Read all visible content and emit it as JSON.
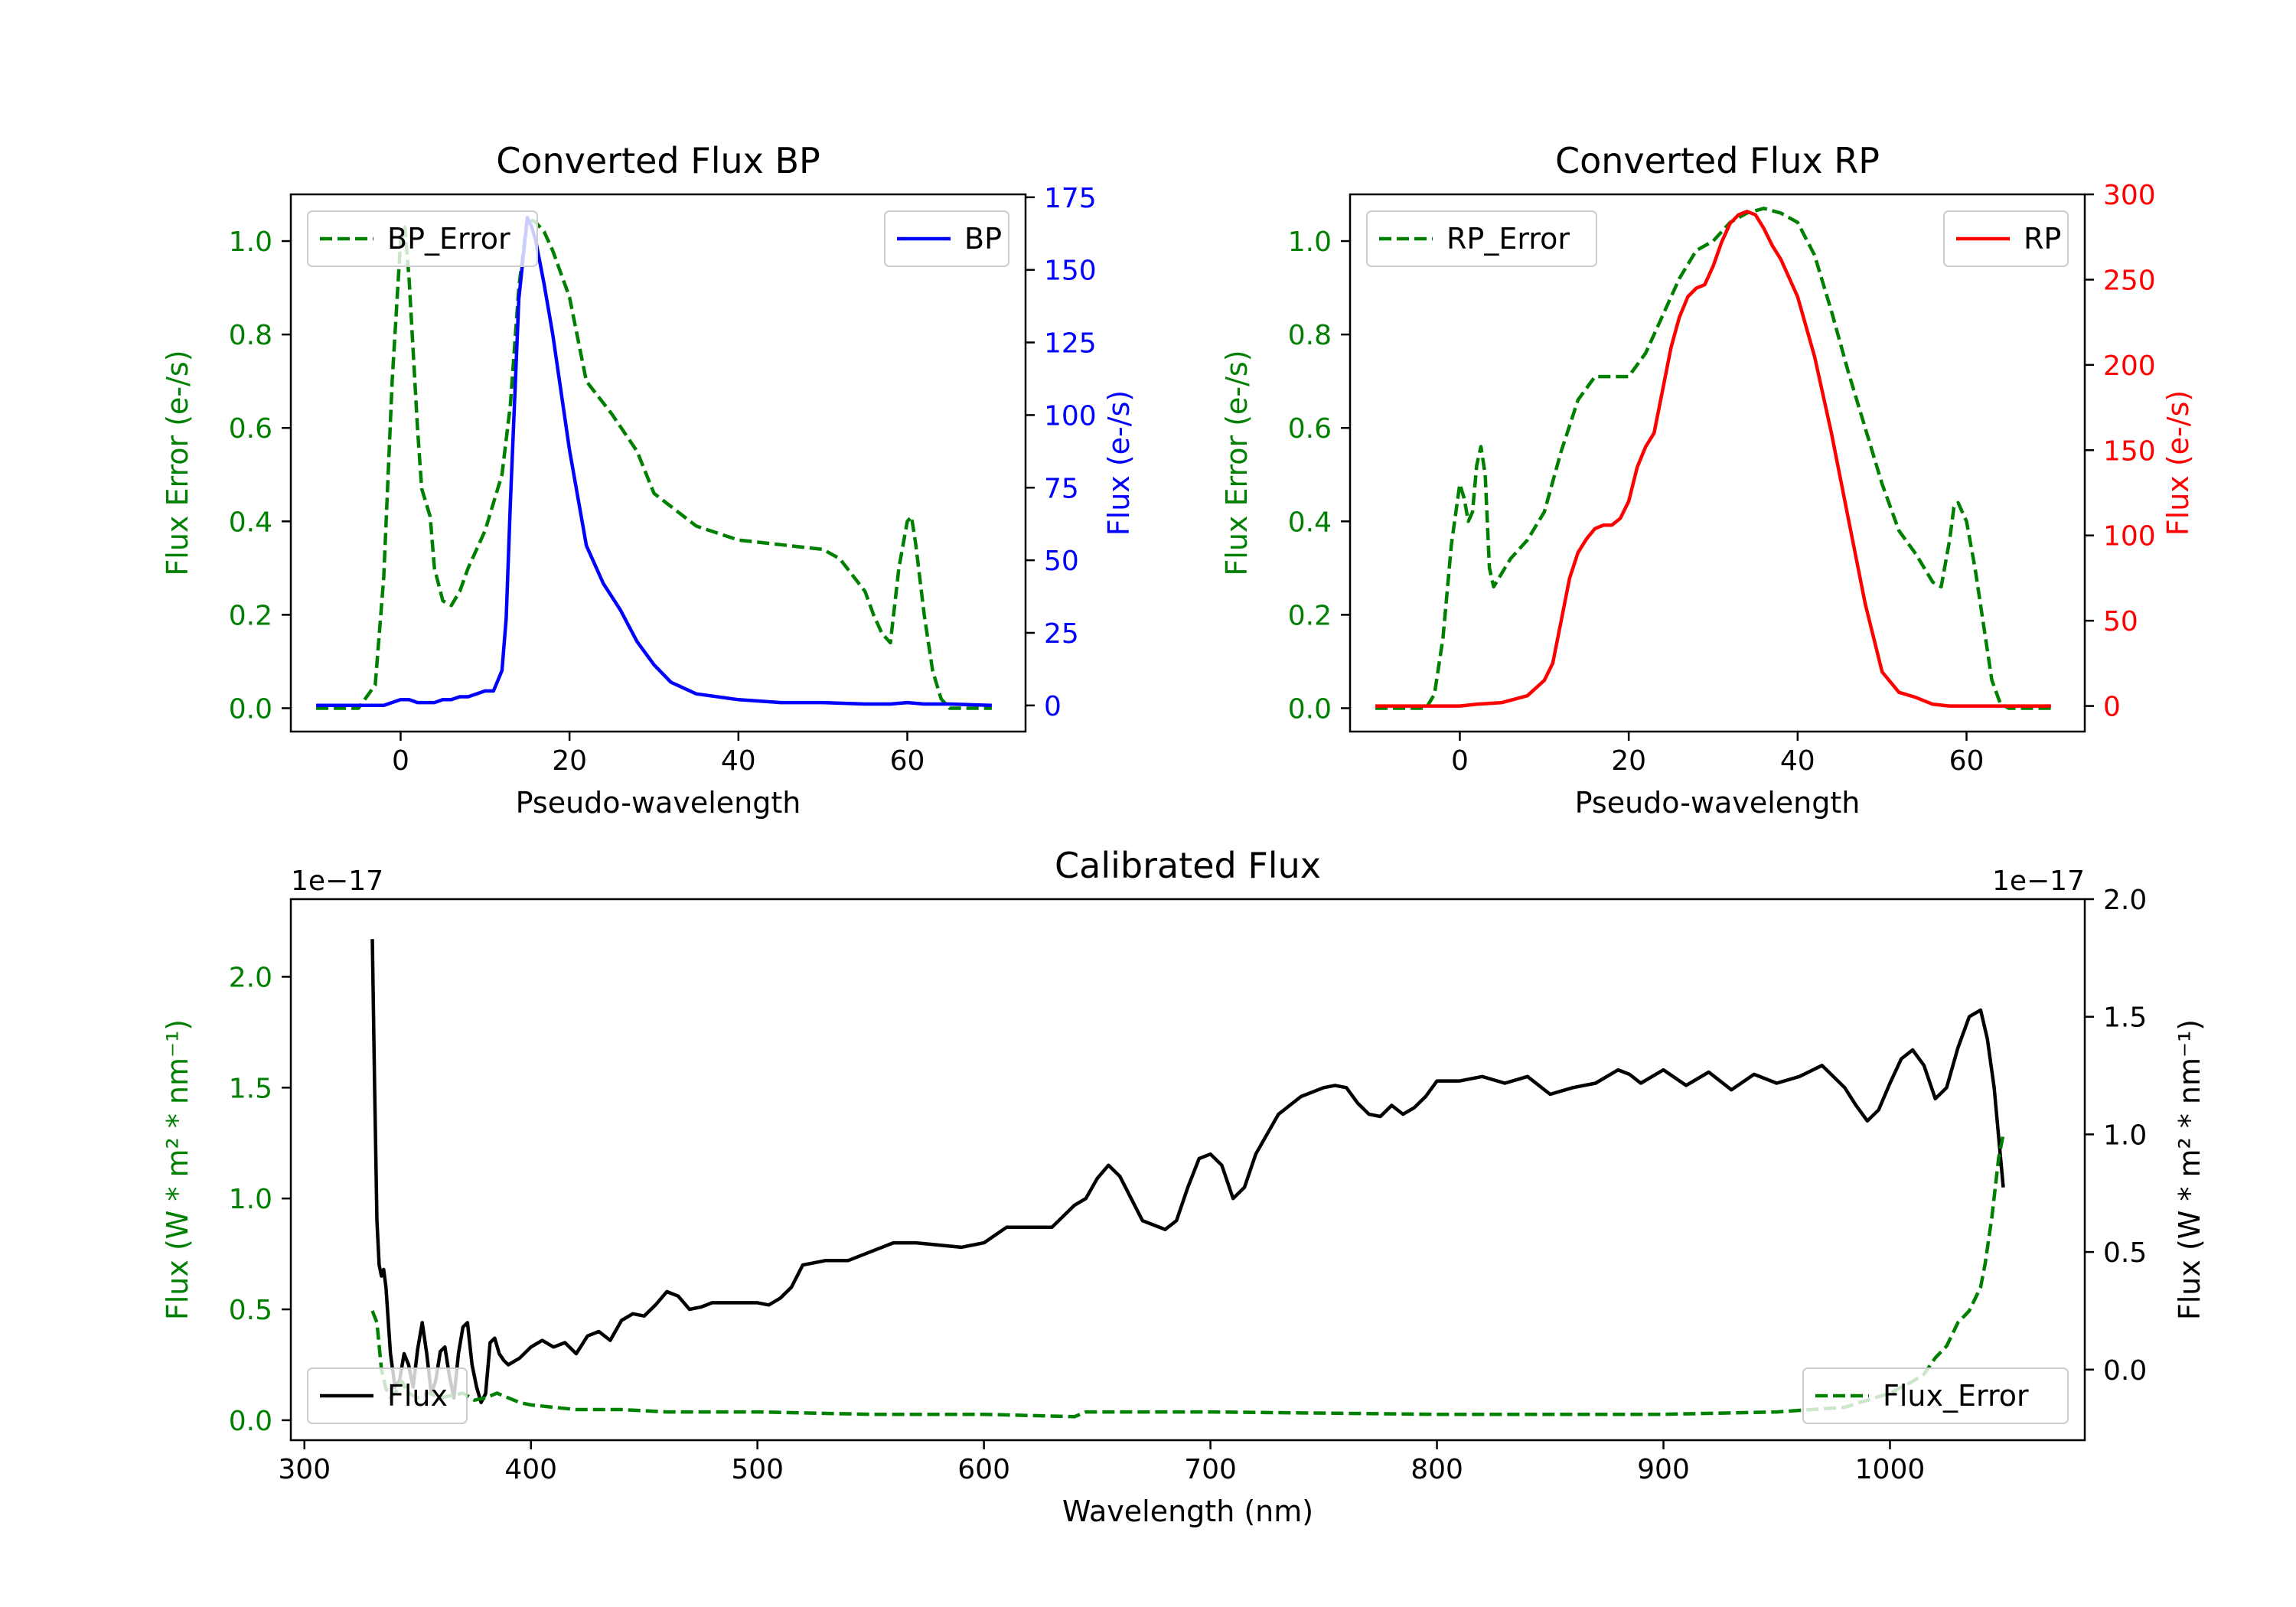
{
  "chart_data": [
    {
      "id": "bp",
      "type": "line",
      "title": "Converted Flux BP",
      "xlabel": "Pseudo-wavelength",
      "ylabel_left": "Flux Error (e-/s)",
      "ylabel_right": "Flux (e-/s)",
      "xlim": [
        -13,
        74
      ],
      "ylim_left": [
        -0.05,
        1.1
      ],
      "ylim_right": [
        -9,
        176
      ],
      "xticks": [
        0,
        20,
        40,
        60
      ],
      "yticks_left": [
        0.0,
        0.2,
        0.4,
        0.6,
        0.8,
        1.0
      ],
      "yticks_right": [
        0,
        25,
        50,
        75,
        100,
        125,
        150,
        175
      ],
      "left_color": "#008000",
      "right_color": "#0000ff",
      "legend_left": "BP_Error",
      "legend_right": "BP",
      "series": [
        {
          "name": "BP_Error",
          "axis": "left",
          "style": "dashed",
          "color": "#008000",
          "x": [
            -10,
            -5,
            -3,
            -2,
            -1,
            0,
            0.5,
            1,
            2,
            2.5,
            3,
            3.5,
            4,
            5,
            6,
            7,
            8,
            10,
            12,
            13,
            14,
            15,
            16,
            17,
            18,
            20,
            22,
            25,
            28,
            30,
            35,
            40,
            45,
            50,
            52,
            55,
            56,
            57,
            58,
            59,
            60,
            60.5,
            61,
            62,
            63,
            64,
            65,
            67,
            70
          ],
          "values": [
            0.0,
            0.0,
            0.05,
            0.28,
            0.7,
            1.0,
            1.03,
            0.92,
            0.6,
            0.47,
            0.44,
            0.41,
            0.3,
            0.23,
            0.22,
            0.25,
            0.3,
            0.38,
            0.5,
            0.65,
            0.9,
            1.05,
            1.04,
            1.02,
            0.98,
            0.88,
            0.7,
            0.63,
            0.55,
            0.46,
            0.39,
            0.36,
            0.35,
            0.34,
            0.32,
            0.25,
            0.2,
            0.16,
            0.14,
            0.3,
            0.4,
            0.41,
            0.35,
            0.2,
            0.08,
            0.02,
            0.0,
            0.0,
            0.0
          ]
        },
        {
          "name": "BP",
          "axis": "right",
          "style": "solid",
          "color": "#0000ff",
          "x": [
            -10,
            -2,
            0,
            1,
            2,
            3,
            4,
            5,
            6,
            7,
            8,
            9,
            10,
            11,
            12,
            12.5,
            13,
            14,
            15,
            15.5,
            16,
            17,
            18,
            20,
            22,
            24,
            26,
            28,
            30,
            32,
            35,
            40,
            45,
            50,
            55,
            58,
            60,
            62,
            65,
            70
          ],
          "values": [
            0,
            0,
            2,
            2,
            1,
            1,
            1,
            2,
            2,
            3,
            3,
            4,
            5,
            5,
            12,
            30,
            70,
            140,
            168,
            165,
            160,
            145,
            128,
            88,
            55,
            42,
            33,
            22,
            14,
            8,
            4,
            2,
            1,
            1,
            0.5,
            0.5,
            1,
            0.5,
            0.5,
            0
          ]
        }
      ]
    },
    {
      "id": "rp",
      "type": "line",
      "title": "Converted Flux RP",
      "xlabel": "Pseudo-wavelength",
      "ylabel_left": "Flux Error (e-/s)",
      "ylabel_right": "Flux (e-/s)",
      "xlim": [
        -13,
        74
      ],
      "ylim_left": [
        -0.05,
        1.1
      ],
      "ylim_right": [
        -15,
        300
      ],
      "xticks": [
        0,
        20,
        40,
        60
      ],
      "yticks_left": [
        0.0,
        0.2,
        0.4,
        0.6,
        0.8,
        1.0
      ],
      "yticks_right": [
        0,
        50,
        100,
        150,
        200,
        250,
        300
      ],
      "left_color": "#008000",
      "right_color": "#ff0000",
      "legend_left": "RP_Error",
      "legend_right": "RP",
      "series": [
        {
          "name": "RP_Error",
          "axis": "left",
          "style": "dashed",
          "color": "#008000",
          "x": [
            -10,
            -4,
            -3,
            -2,
            -1,
            0,
            0.5,
            1,
            1.5,
            2,
            2.5,
            3,
            3.5,
            4,
            5,
            6,
            8,
            10,
            12,
            14,
            16,
            18,
            20,
            22,
            24,
            26,
            28,
            30,
            32,
            34,
            36,
            38,
            40,
            42,
            44,
            46,
            48,
            50,
            52,
            54,
            55,
            56,
            57,
            58,
            58.5,
            59,
            60,
            61,
            62,
            63,
            64,
            65,
            70
          ],
          "values": [
            0.0,
            0.0,
            0.03,
            0.15,
            0.35,
            0.48,
            0.45,
            0.4,
            0.42,
            0.52,
            0.56,
            0.5,
            0.3,
            0.26,
            0.29,
            0.32,
            0.36,
            0.42,
            0.55,
            0.66,
            0.71,
            0.71,
            0.71,
            0.76,
            0.84,
            0.92,
            0.98,
            1.0,
            1.04,
            1.06,
            1.07,
            1.06,
            1.04,
            0.97,
            0.85,
            0.72,
            0.6,
            0.48,
            0.38,
            0.33,
            0.3,
            0.27,
            0.26,
            0.36,
            0.43,
            0.44,
            0.4,
            0.3,
            0.18,
            0.06,
            0.01,
            0.0,
            0.0
          ]
        },
        {
          "name": "RP",
          "axis": "right",
          "style": "solid",
          "color": "#ff0000",
          "x": [
            -10,
            0,
            2,
            5,
            8,
            10,
            11,
            12,
            13,
            14,
            15,
            16,
            17,
            18,
            19,
            20,
            21,
            22,
            23,
            24,
            25,
            26,
            27,
            28,
            29,
            30,
            31,
            32,
            33,
            34,
            35,
            36,
            37,
            38,
            40,
            42,
            44,
            46,
            48,
            50,
            52,
            54,
            56,
            58,
            60,
            62,
            65,
            70
          ],
          "values": [
            0,
            0,
            1,
            2,
            6,
            15,
            25,
            50,
            75,
            90,
            98,
            104,
            106,
            106,
            110,
            120,
            140,
            152,
            160,
            185,
            210,
            228,
            240,
            245,
            247,
            258,
            272,
            283,
            288,
            290,
            288,
            280,
            270,
            262,
            240,
            205,
            160,
            110,
            60,
            20,
            8,
            5,
            1,
            0,
            0,
            0,
            0,
            0
          ]
        }
      ]
    },
    {
      "id": "cal",
      "type": "line",
      "title": "Calibrated Flux",
      "xlabel": "Wavelength (nm)",
      "ylabel_left": "Flux (W * m² * nm⁻¹)",
      "ylabel_right": "Flux (W * m² * nm⁻¹)",
      "offset_left": "1e−17",
      "offset_right": "1e−17",
      "xlim": [
        294,
        1086
      ],
      "ylim_left": [
        -0.09,
        2.35
      ],
      "ylim_right": [
        -0.3,
        2.0
      ],
      "xticks": [
        300,
        400,
        500,
        600,
        700,
        800,
        900,
        1000
      ],
      "yticks_left": [
        0.0,
        0.5,
        1.0,
        1.5,
        2.0
      ],
      "yticks_right": [
        0.0,
        0.5,
        1.0,
        1.5,
        2.0
      ],
      "left_color": "#008000",
      "right_color": "#000000",
      "legend_left": "Flux",
      "legend_right": "Flux_Error",
      "series": [
        {
          "name": "Flux",
          "axis": "left",
          "style": "solid",
          "color": "#000000",
          "x": [
            330,
            331,
            332,
            333,
            334,
            335,
            336,
            338,
            340,
            342,
            344,
            346,
            348,
            350,
            352,
            354,
            356,
            358,
            360,
            362,
            364,
            366,
            368,
            370,
            372,
            374,
            376,
            378,
            380,
            382,
            384,
            386,
            388,
            390,
            395,
            400,
            405,
            410,
            415,
            420,
            425,
            430,
            435,
            440,
            445,
            450,
            455,
            460,
            465,
            470,
            475,
            480,
            490,
            500,
            505,
            510,
            515,
            520,
            530,
            540,
            550,
            560,
            570,
            580,
            590,
            600,
            610,
            620,
            625,
            630,
            640,
            645,
            650,
            655,
            660,
            665,
            670,
            675,
            680,
            685,
            690,
            695,
            700,
            705,
            710,
            715,
            720,
            730,
            740,
            750,
            755,
            760,
            765,
            770,
            775,
            780,
            785,
            790,
            795,
            800,
            810,
            820,
            830,
            840,
            850,
            860,
            870,
            880,
            885,
            890,
            900,
            910,
            920,
            930,
            940,
            950,
            960,
            970,
            975,
            980,
            985,
            990,
            995,
            1000,
            1005,
            1010,
            1015,
            1020,
            1025,
            1030,
            1035,
            1040,
            1043,
            1046,
            1050
          ],
          "values": [
            2.17,
            1.5,
            0.9,
            0.7,
            0.65,
            0.68,
            0.6,
            0.3,
            0.15,
            0.18,
            0.3,
            0.25,
            0.15,
            0.32,
            0.44,
            0.3,
            0.12,
            0.18,
            0.31,
            0.33,
            0.2,
            0.1,
            0.3,
            0.42,
            0.44,
            0.25,
            0.15,
            0.08,
            0.12,
            0.35,
            0.37,
            0.3,
            0.27,
            0.25,
            0.28,
            0.33,
            0.36,
            0.33,
            0.35,
            0.3,
            0.38,
            0.4,
            0.36,
            0.45,
            0.48,
            0.47,
            0.52,
            0.58,
            0.56,
            0.5,
            0.51,
            0.53,
            0.53,
            0.53,
            0.52,
            0.55,
            0.6,
            0.7,
            0.72,
            0.72,
            0.76,
            0.8,
            0.8,
            0.79,
            0.78,
            0.8,
            0.87,
            0.87,
            0.87,
            0.87,
            0.97,
            1.0,
            1.09,
            1.15,
            1.1,
            1.0,
            0.9,
            0.88,
            0.86,
            0.9,
            1.05,
            1.18,
            1.2,
            1.15,
            1.0,
            1.05,
            1.2,
            1.38,
            1.46,
            1.5,
            1.51,
            1.5,
            1.43,
            1.38,
            1.37,
            1.42,
            1.38,
            1.41,
            1.46,
            1.53,
            1.53,
            1.55,
            1.52,
            1.55,
            1.47,
            1.5,
            1.52,
            1.58,
            1.56,
            1.52,
            1.58,
            1.51,
            1.57,
            1.49,
            1.56,
            1.52,
            1.55,
            1.6,
            1.55,
            1.5,
            1.42,
            1.35,
            1.4,
            1.52,
            1.63,
            1.67,
            1.6,
            1.45,
            1.5,
            1.68,
            1.82,
            1.85,
            1.72,
            1.5,
            1.05
          ]
        },
        {
          "name": "Flux_Error",
          "axis": "right",
          "style": "dashed",
          "color": "#008000",
          "x": [
            330,
            332,
            334,
            336,
            338,
            340,
            343,
            346,
            350,
            355,
            360,
            365,
            370,
            375,
            380,
            385,
            390,
            395,
            400,
            410,
            420,
            440,
            460,
            500,
            550,
            600,
            640,
            645,
            650,
            700,
            800,
            900,
            950,
            980,
            1000,
            1010,
            1015,
            1020,
            1025,
            1030,
            1035,
            1040,
            1042,
            1045,
            1048,
            1050
          ],
          "values": [
            0.25,
            0.2,
            0.0,
            -0.08,
            -0.12,
            -0.1,
            -0.05,
            -0.1,
            -0.12,
            -0.1,
            -0.12,
            -0.11,
            -0.1,
            -0.13,
            -0.12,
            -0.1,
            -0.12,
            -0.14,
            -0.15,
            -0.16,
            -0.17,
            -0.17,
            -0.18,
            -0.18,
            -0.19,
            -0.19,
            -0.2,
            -0.18,
            -0.18,
            -0.18,
            -0.19,
            -0.19,
            -0.18,
            -0.16,
            -0.1,
            -0.05,
            -0.02,
            0.05,
            0.1,
            0.2,
            0.25,
            0.35,
            0.45,
            0.65,
            0.9,
            1.0
          ]
        }
      ]
    }
  ]
}
